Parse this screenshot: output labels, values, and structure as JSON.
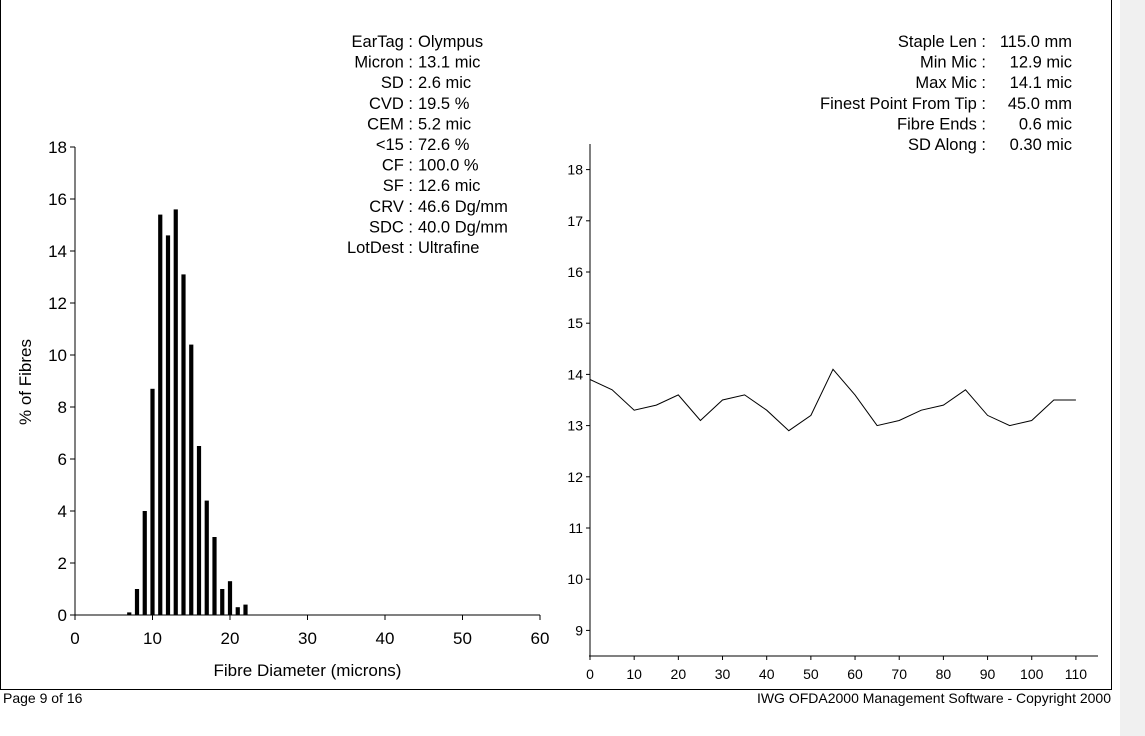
{
  "stats_left": [
    {
      "label": "EarTag :",
      "value": "Olympus"
    },
    {
      "label": "Micron :",
      "value": "13.1 mic"
    },
    {
      "label": "SD :",
      "value": "2.6 mic"
    },
    {
      "label": "CVD :",
      "value": "19.5 %"
    },
    {
      "label": "CEM :",
      "value": "5.2 mic"
    },
    {
      "label": "<15 :",
      "value": "72.6 %"
    },
    {
      "label": "CF :",
      "value": "100.0 %"
    },
    {
      "label": "SF :",
      "value": "12.6 mic"
    },
    {
      "label": "CRV :",
      "value": "46.6 Dg/mm"
    },
    {
      "label": "SDC :",
      "value": "40.0 Dg/mm"
    },
    {
      "label": "LotDest :",
      "value": "Ultrafine"
    }
  ],
  "stats_right": [
    {
      "label": "Staple Len :",
      "value": "115.0 mm"
    },
    {
      "label": "Min Mic :",
      "value": "12.9 mic"
    },
    {
      "label": "Max Mic :",
      "value": "14.1 mic"
    },
    {
      "label": "Finest Point From Tip :",
      "value": "45.0 mm"
    },
    {
      "label": "Fibre Ends :",
      "value": "0.6 mic"
    },
    {
      "label": "SD Along :",
      "value": "0.30 mic"
    }
  ],
  "chart_data": [
    {
      "type": "bar",
      "title": "",
      "xlabel": "Fibre Diameter (microns)",
      "ylabel": "% of Fibres",
      "xlim": [
        0,
        60
      ],
      "ylim": [
        0,
        18
      ],
      "xticks": [
        0,
        10,
        20,
        30,
        40,
        50,
        60
      ],
      "yticks": [
        0,
        2,
        4,
        6,
        8,
        10,
        12,
        14,
        16,
        18
      ],
      "x": [
        7,
        8,
        9,
        10,
        11,
        12,
        13,
        14,
        15,
        16,
        17,
        18,
        19,
        20,
        21,
        22
      ],
      "values": [
        0.1,
        1.0,
        4.0,
        8.7,
        15.4,
        14.6,
        15.6,
        13.1,
        10.4,
        6.5,
        4.4,
        3.0,
        1.0,
        1.3,
        0.3,
        0.4
      ]
    },
    {
      "type": "line",
      "title": "",
      "xlabel": "",
      "ylabel": "",
      "xlim": [
        0,
        115
      ],
      "ylim": [
        8.5,
        18.5
      ],
      "xticks": [
        0,
        10,
        20,
        30,
        40,
        50,
        60,
        70,
        80,
        90,
        100,
        110
      ],
      "yticks": [
        9,
        10,
        11,
        12,
        13,
        14,
        15,
        16,
        17,
        18
      ],
      "x": [
        0,
        5,
        10,
        15,
        20,
        25,
        30,
        35,
        40,
        45,
        50,
        55,
        60,
        65,
        70,
        75,
        80,
        85,
        90,
        95,
        100,
        105,
        110
      ],
      "values": [
        13.9,
        13.7,
        13.3,
        13.4,
        13.6,
        13.1,
        13.5,
        13.6,
        13.3,
        12.9,
        13.2,
        14.1,
        13.6,
        13.0,
        13.1,
        13.3,
        13.4,
        13.7,
        13.2,
        13.0,
        13.1,
        13.5,
        13.5
      ]
    }
  ],
  "footer": {
    "page": "Page 9 of 16",
    "copyright": "IWG OFDA2000 Management Software - Copyright 2000"
  }
}
